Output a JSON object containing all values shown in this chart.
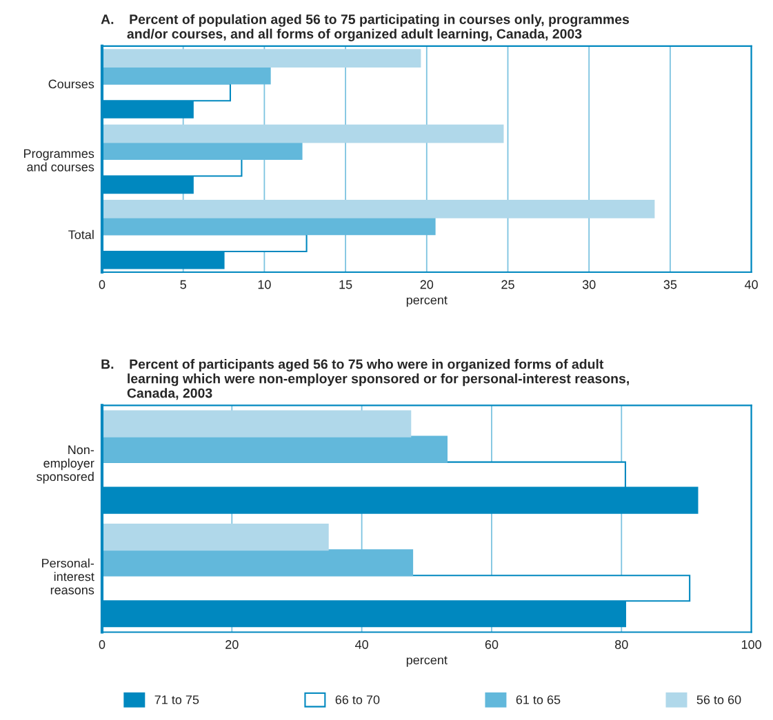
{
  "chart_data": [
    {
      "type": "bar",
      "orientation": "horizontal",
      "title": "A.    Percent of population aged 56 to 75 participating in courses only, programmes\n       and/or courses, and all forms of organized adult learning, Canada, 2003",
      "xlabel": "percent",
      "categories": [
        "Courses",
        "Programmes\nand courses",
        "Total"
      ],
      "series": [
        {
          "name": "71 to 75",
          "color": "#0088bf",
          "values": [
            5.6,
            5.6,
            7.5
          ]
        },
        {
          "name": "66 to 70",
          "color": "#ffffff",
          "values": [
            7.9,
            8.6,
            12.6
          ]
        },
        {
          "name": "61 to 65",
          "color": "#62b8db",
          "values": [
            10.35,
            12.3,
            20.5
          ]
        },
        {
          "name": "56 to 60",
          "color": "#b0d8ea",
          "values": [
            19.6,
            24.7,
            34.0
          ]
        }
      ],
      "xlim": [
        0,
        40
      ],
      "xticks": [
        0,
        5,
        10,
        15,
        20,
        25,
        30,
        35,
        40
      ],
      "grid": "x",
      "legend": "bottom"
    },
    {
      "type": "bar",
      "orientation": "horizontal",
      "title": "B.    Percent of participants aged 56 to 75 who were in organized forms of adult\n       learning which were non-employer sponsored or for personal-interest reasons,\n       Canada, 2003",
      "xlabel": "percent",
      "categories": [
        "Non-\nemployer\nsponsored",
        "Personal-\ninterest\nreasons"
      ],
      "series": [
        {
          "name": "71 to 75",
          "color": "#0088bf",
          "values": [
            91.7,
            80.6
          ]
        },
        {
          "name": "66 to 70",
          "color": "#ffffff",
          "values": [
            80.6,
            90.5
          ]
        },
        {
          "name": "61 to 65",
          "color": "#62b8db",
          "values": [
            53.1,
            47.8
          ]
        },
        {
          "name": "56 to 60",
          "color": "#b0d8ea",
          "values": [
            47.5,
            34.8
          ]
        }
      ],
      "xlim": [
        0,
        100
      ],
      "xticks": [
        0,
        20,
        40,
        60,
        80,
        100
      ],
      "grid": "x",
      "legend": "bottom"
    }
  ]
}
